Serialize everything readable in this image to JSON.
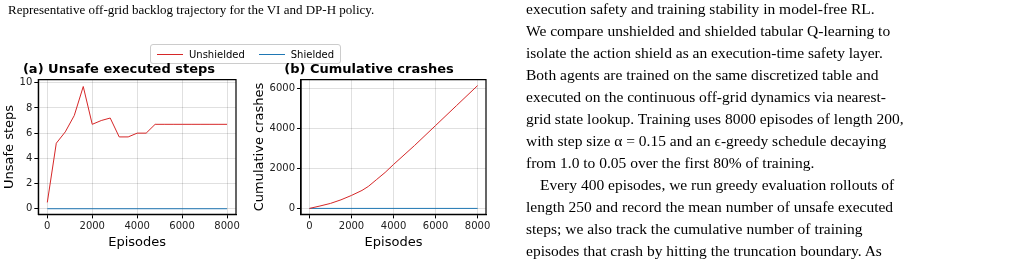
{
  "chart_data": [
    {
      "type": "other",
      "annotations": [
        "Representative off-grid backlog trajectory for the VI and DP-H policy."
      ]
    },
    {
      "type": "line",
      "title": "(a) Unsafe executed steps",
      "xlabel": "Episodes",
      "ylabel": "Unsafe steps",
      "series": [
        {
          "name": "Unshielded",
          "color": "#d62728",
          "x": [
            0,
            400,
            800,
            1200,
            1600,
            2000,
            2400,
            2800,
            3200,
            3600,
            4000,
            4400,
            4800,
            5200,
            5600,
            6000,
            6400,
            6800,
            7200,
            7600,
            8000
          ],
          "values": [
            0.5,
            5.2,
            6.1,
            7.4,
            9.7,
            6.7,
            7.0,
            7.2,
            5.7,
            5.7,
            6.0,
            6.0,
            6.7,
            6.7,
            6.7,
            6.7,
            6.7,
            6.7,
            6.7,
            6.7,
            6.7
          ]
        },
        {
          "name": "Shielded",
          "color": "#1f77b4",
          "x": [
            0,
            8000
          ],
          "values": [
            0,
            0
          ]
        }
      ],
      "xlim": [
        -400,
        8400
      ],
      "xticks": [
        0,
        2000,
        4000,
        6000,
        8000
      ],
      "ylim": [
        -0.45,
        10.25
      ],
      "yticks": [
        0,
        2,
        4,
        6,
        8,
        10
      ],
      "grid": true,
      "legend": "top"
    },
    {
      "type": "line",
      "title": "(b) Cumulative crashes",
      "xlabel": "Episodes",
      "ylabel": "Cumulative crashes",
      "series": [
        {
          "color": "#d62728",
          "x": [
            0,
            500,
            1000,
            1500,
            2000,
            2500,
            2800,
            3200,
            3600,
            4000,
            5000,
            6000,
            7000,
            8000
          ],
          "values": [
            0,
            120,
            250,
            430,
            650,
            900,
            1100,
            1450,
            1800,
            2200,
            3150,
            4150,
            5150,
            6150
          ]
        },
        {
          "color": "#1f77b4",
          "x": [
            0,
            8000
          ],
          "values": [
            0,
            0
          ]
        }
      ],
      "xlim": [
        -400,
        8400
      ],
      "xticks": [
        0,
        2000,
        4000,
        6000,
        8000
      ],
      "ylim": [
        -300,
        6450
      ],
      "yticks": [
        0,
        2000,
        4000,
        6000
      ],
      "grid": true
    },
    {
      "type": "other",
      "annotations": [
        "execution safety and training stability in model-free RL.",
        "We compare unshielded and shielded tabular Q-learning to",
        "isolate the action shield as an execution-time safety layer.",
        "Both agents are trained on the same discretized table and",
        "executed on the continuous off-grid dynamics via nearest-",
        "grid state lookup. Training uses 8000 episodes of length 200,",
        "with step size α = 0.15 and an ϵ-greedy schedule decaying",
        "from 1.0 to 0.05 over the first 80% of training.",
        "Every 400 episodes, we run greedy evaluation rollouts of",
        "length 250 and record the mean number of unsafe executed",
        "steps; we also track the cumulative number of training",
        "episodes that crash by hitting the truncation boundary. As"
      ]
    }
  ]
}
